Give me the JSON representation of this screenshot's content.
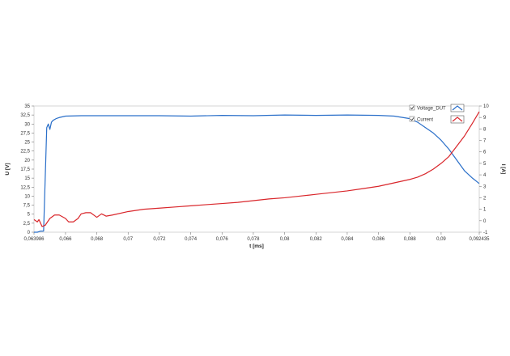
{
  "chart_data": {
    "type": "line",
    "xlabel": "t [ms]",
    "ylabel_left": "U [V]",
    "ylabel_right": "I [A]",
    "x_tick_labels": [
      "0,063986",
      "0,066",
      "0,068",
      "0,07",
      "0,072",
      "0,074",
      "0,076",
      "0,078",
      "0,08",
      "0,082",
      "0,084",
      "0,086",
      "0,088",
      "0,09",
      "0,092435"
    ],
    "x_tick_values": [
      0.063986,
      0.066,
      0.068,
      0.07,
      0.072,
      0.074,
      0.076,
      0.078,
      0.08,
      0.082,
      0.084,
      0.086,
      0.088,
      0.09,
      0.092435
    ],
    "xlim": [
      0.063986,
      0.092435
    ],
    "y_left_tick_labels": [
      "0",
      "2,5",
      "5",
      "7,5",
      "10",
      "12,5",
      "15",
      "17,5",
      "20",
      "22,5",
      "25",
      "27,5",
      "30",
      "32,5",
      "35"
    ],
    "y_left_tick_values": [
      0,
      2.5,
      5,
      7.5,
      10,
      12.5,
      15,
      17.5,
      20,
      22.5,
      25,
      27.5,
      30,
      32.5,
      35
    ],
    "ylim_left": [
      0,
      35
    ],
    "y_right_tick_labels": [
      "-1",
      "0",
      "1",
      "2",
      "3",
      "4",
      "5",
      "6",
      "7",
      "8",
      "9",
      "10"
    ],
    "y_right_tick_values": [
      -1,
      0,
      1,
      2,
      3,
      4,
      5,
      6,
      7,
      8,
      9,
      10
    ],
    "ylim_right": [
      -1,
      10
    ],
    "grid": false,
    "legend_position": "top-right",
    "series": [
      {
        "name": "Voltage_DUT",
        "axis": "left",
        "color": "#2a6fc9",
        "x": [
          0.063986,
          0.0642,
          0.0644,
          0.0646,
          0.0648,
          0.0649,
          0.065,
          0.0651,
          0.0652,
          0.0654,
          0.0656,
          0.066,
          0.067,
          0.068,
          0.07,
          0.072,
          0.074,
          0.076,
          0.078,
          0.08,
          0.082,
          0.084,
          0.086,
          0.087,
          0.088,
          0.0885,
          0.089,
          0.0895,
          0.09,
          0.0905,
          0.091,
          0.0915,
          0.092,
          0.092435
        ],
        "y": [
          0,
          0,
          0.3,
          0.3,
          29,
          30,
          28.5,
          30.5,
          31,
          31.5,
          31.8,
          32.2,
          32.3,
          32.3,
          32.3,
          32.3,
          32.2,
          32.4,
          32.3,
          32.5,
          32.4,
          32.5,
          32.4,
          32.2,
          31.5,
          30.5,
          29,
          27.5,
          25.5,
          23,
          20,
          17,
          15,
          13.5
        ]
      },
      {
        "name": "Current",
        "axis": "right",
        "color": "#d9262b",
        "x": [
          0.063986,
          0.0642,
          0.0643,
          0.0645,
          0.0647,
          0.0648,
          0.065,
          0.0653,
          0.0656,
          0.066,
          0.0662,
          0.0665,
          0.0668,
          0.067,
          0.0673,
          0.0676,
          0.068,
          0.0683,
          0.0686,
          0.069,
          0.07,
          0.071,
          0.072,
          0.073,
          0.074,
          0.075,
          0.076,
          0.077,
          0.078,
          0.079,
          0.08,
          0.081,
          0.082,
          0.083,
          0.084,
          0.085,
          0.086,
          0.087,
          0.088,
          0.0885,
          0.089,
          0.0895,
          0.09,
          0.0905,
          0.091,
          0.0915,
          0.092,
          0.092435
        ],
        "y": [
          0.1,
          -0.1,
          0.1,
          -0.5,
          -0.4,
          -0.2,
          0.2,
          0.5,
          0.5,
          0.2,
          -0.1,
          -0.1,
          0.2,
          0.6,
          0.7,
          0.7,
          0.3,
          0.6,
          0.4,
          0.5,
          0.8,
          1,
          1.1,
          1.2,
          1.3,
          1.4,
          1.5,
          1.6,
          1.75,
          1.9,
          2,
          2.15,
          2.3,
          2.45,
          2.6,
          2.8,
          3,
          3.3,
          3.6,
          3.8,
          4.1,
          4.5,
          5,
          5.6,
          6.5,
          7.4,
          8.5,
          9.5
        ]
      }
    ]
  },
  "legend": [
    {
      "label": "Voltage_DUT",
      "checked": true,
      "color": "#2a6fc9"
    },
    {
      "label": "Current",
      "checked": true,
      "color": "#d9262b"
    }
  ]
}
